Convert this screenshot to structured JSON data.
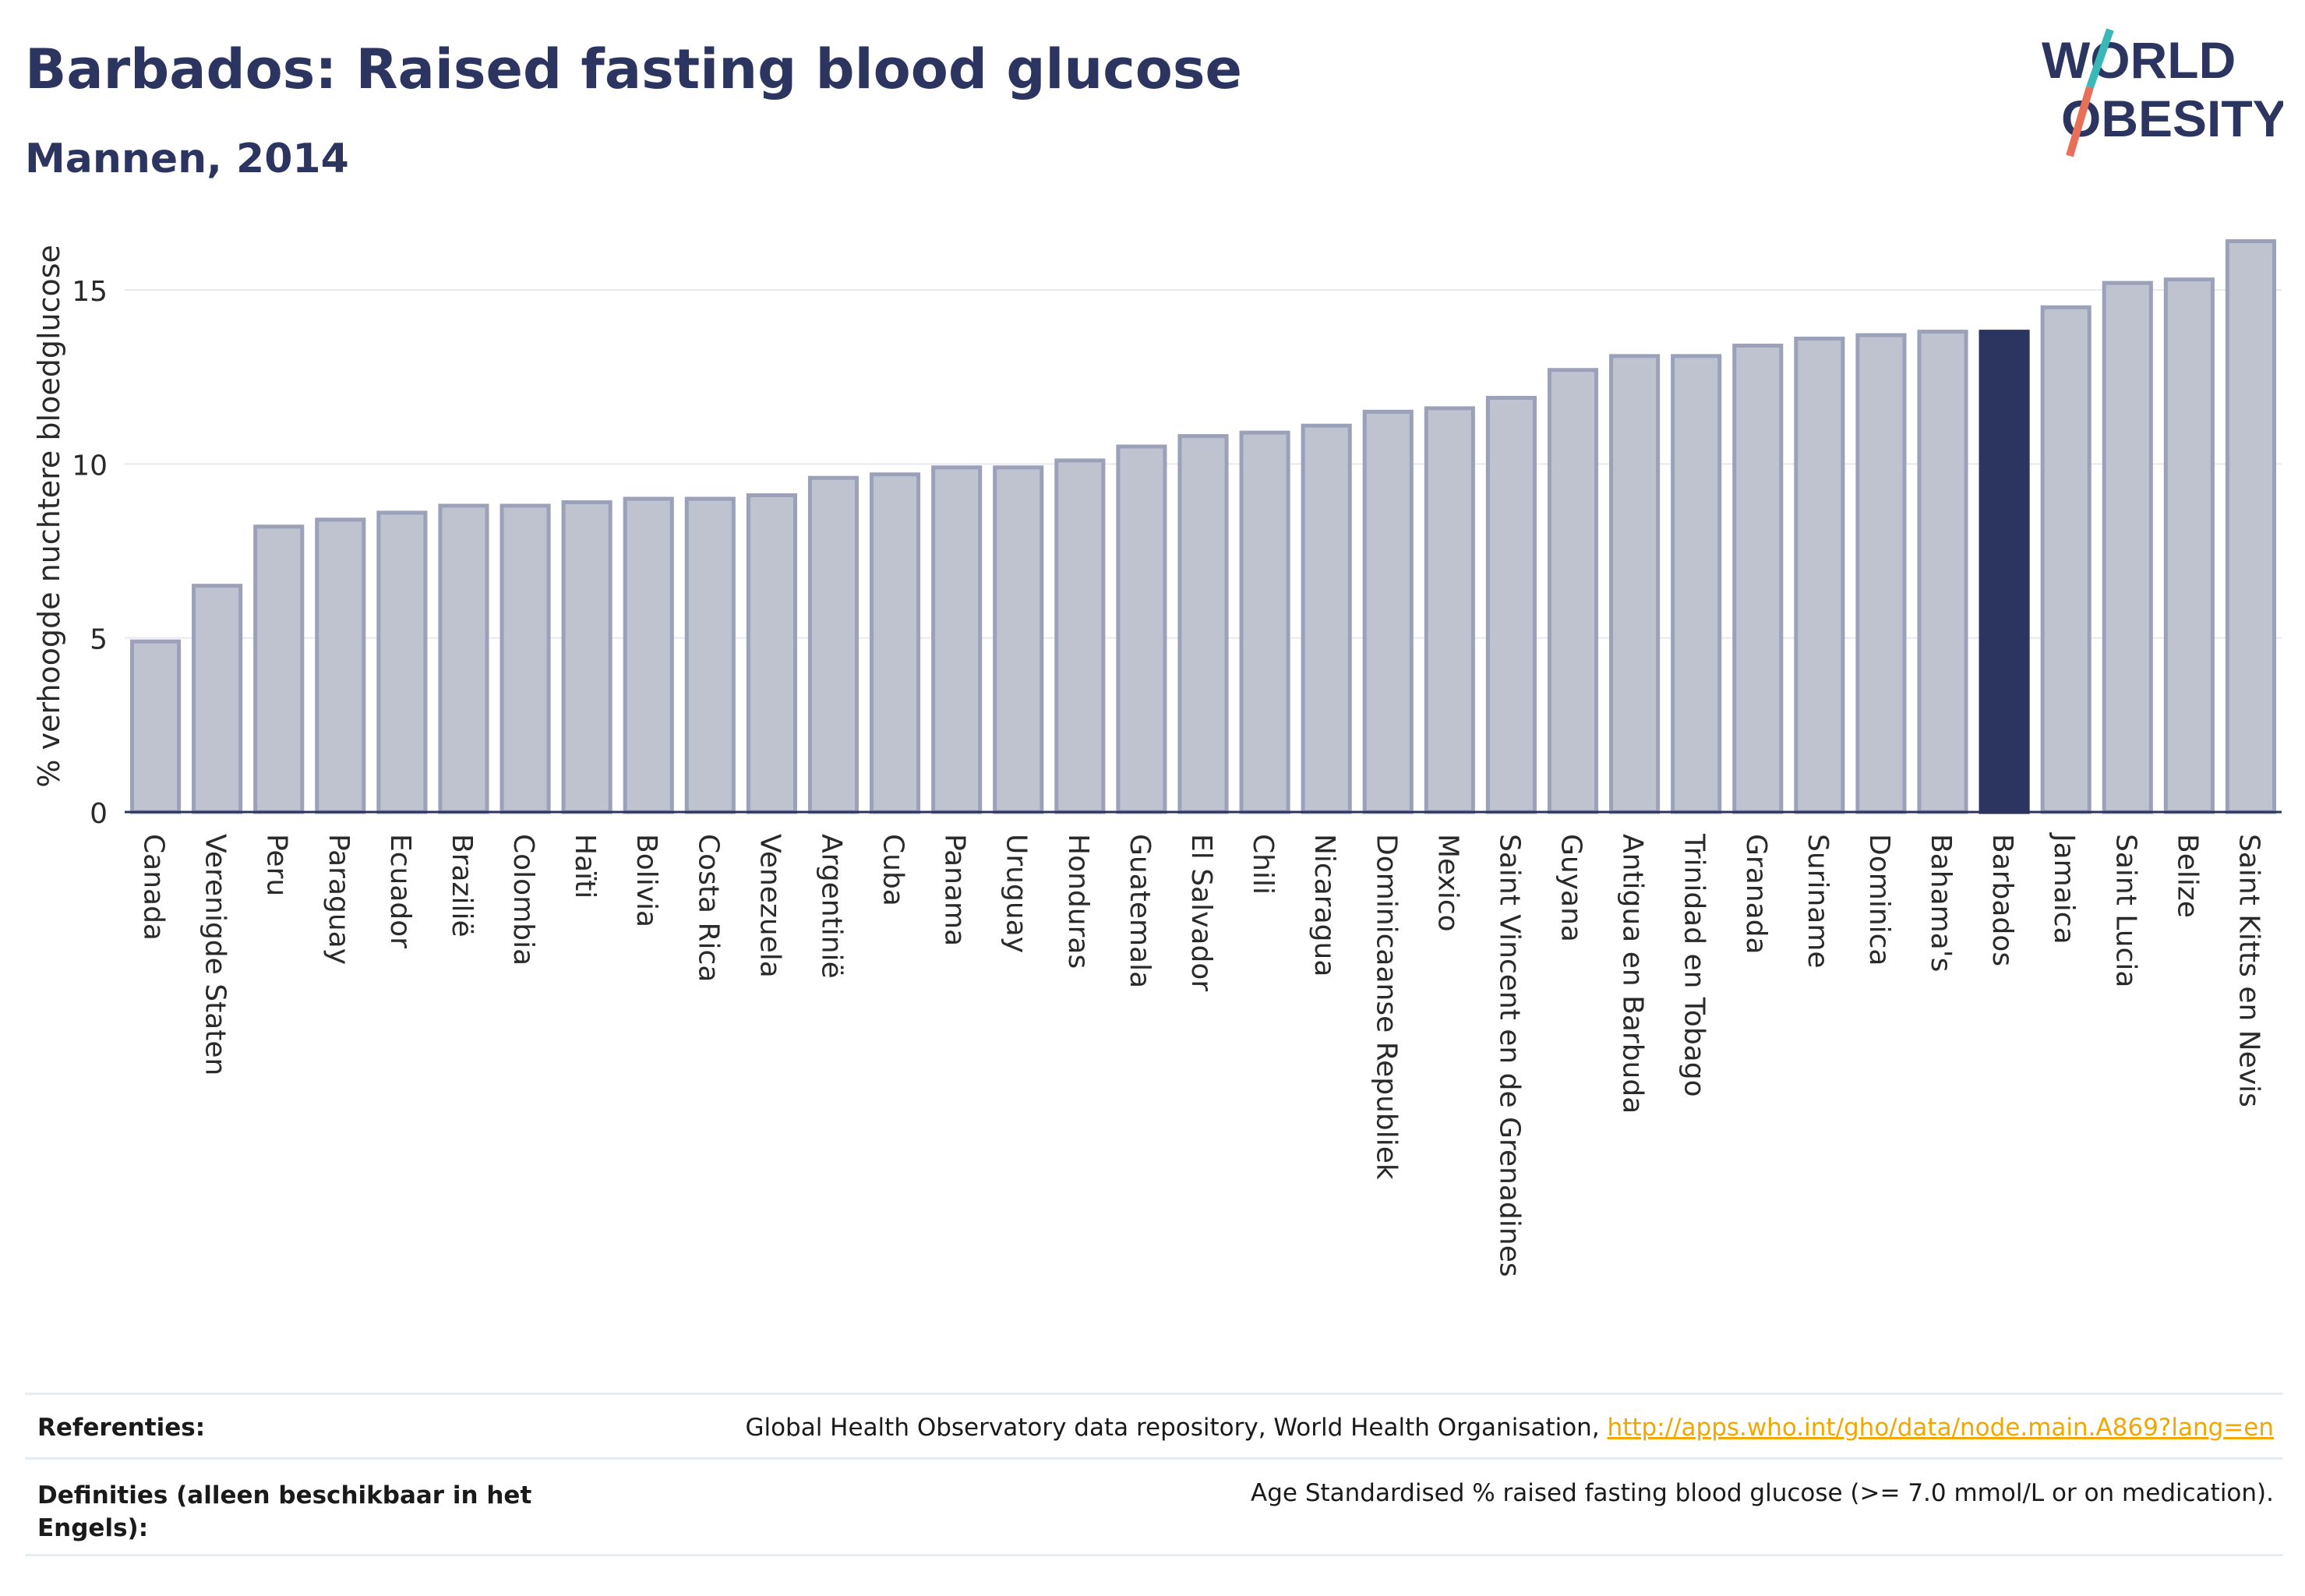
{
  "header": {
    "title": "Barbados: Raised fasting blood glucose",
    "subtitle": "Mannen, 2014"
  },
  "logo": {
    "line1": "WORLD",
    "line2": "OBESITY",
    "colors": {
      "text": "#2b3560",
      "slash_teal": "#3ab8b8",
      "slash_coral": "#e8705a"
    }
  },
  "chart_data": {
    "type": "bar",
    "ylabel": "% verhoogde nuchtere bloedglucose",
    "xlabel": "",
    "ylim": [
      0,
      17
    ],
    "yticks": [
      0,
      5,
      10,
      15
    ],
    "grid": true,
    "highlight": "Barbados",
    "colors": {
      "bar": "#bfc3d0",
      "bar_edge": "#9aa1b8",
      "highlight": "#2b3560"
    },
    "categories": [
      "Canada",
      "Verenigde Staten",
      "Peru",
      "Paraguay",
      "Ecuador",
      "Brazilië",
      "Colombia",
      "Haïti",
      "Bolivia",
      "Costa Rica",
      "Venezuela",
      "Argentinië",
      "Cuba",
      "Panama",
      "Uruguay",
      "Honduras",
      "Guatemala",
      "El Salvador",
      "Chili",
      "Nicaragua",
      "Dominicaanse Republiek",
      "Mexico",
      "Saint Vincent en de Grenadines",
      "Guyana",
      "Antigua en Barbuda",
      "Trinidad en Tobago",
      "Granada",
      "Suriname",
      "Dominica",
      "Bahama's",
      "Barbados",
      "Jamaica",
      "Saint Lucia",
      "Belize",
      "Saint Kitts en Nevis"
    ],
    "values": [
      4.9,
      6.5,
      8.2,
      8.4,
      8.6,
      8.8,
      8.8,
      8.9,
      9.0,
      9.0,
      9.1,
      9.6,
      9.7,
      9.9,
      9.9,
      10.1,
      10.5,
      10.8,
      10.9,
      11.1,
      11.5,
      11.6,
      11.9,
      12.7,
      13.1,
      13.1,
      13.4,
      13.6,
      13.7,
      13.8,
      13.8,
      14.5,
      15.2,
      15.3,
      16.4
    ]
  },
  "footer": {
    "references_label": "Referenties:",
    "references_text": "Global Health Observatory data repository, World Health Organisation, ",
    "references_link": "http://apps.who.int/gho/data/node.main.A869?lang=en",
    "definitions_label": "Definities (alleen beschikbaar in het Engels):",
    "definitions_text": "Age Standardised % raised fasting blood glucose (>= 7.0 mmol/L or on medication)."
  }
}
